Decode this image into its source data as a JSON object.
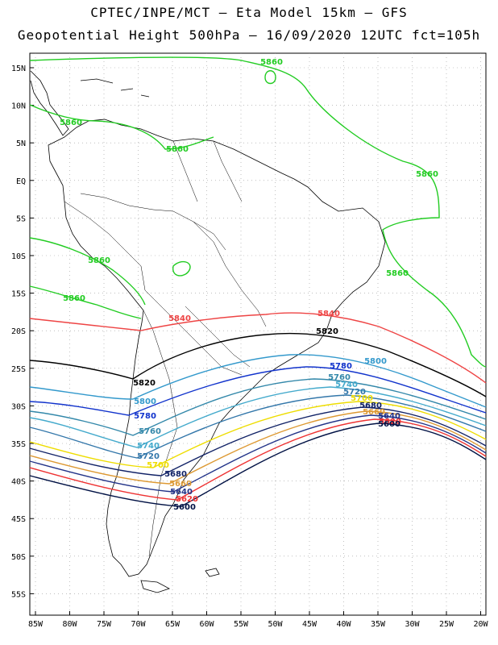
{
  "header": {
    "line1": "CPTEC/INPE/MCT –  Eta Model 15km – GFS",
    "line2": "Geopotential Height 500hPa – 16/09/2020 12UTC fct=105h"
  },
  "map": {
    "lat_labels": [
      "15N",
      "10N",
      "5N",
      "EQ",
      "5S",
      "10S",
      "15S",
      "20S",
      "25S",
      "30S",
      "35S",
      "40S",
      "45S",
      "50S",
      "55S"
    ],
    "lon_labels": [
      "85W",
      "80W",
      "75W",
      "70W",
      "65W",
      "60W",
      "55W",
      "50W",
      "45W",
      "40W",
      "35W",
      "30W",
      "25W",
      "20W"
    ],
    "colors": {
      "c5860": "#22cc22",
      "c5840": "#ee4444",
      "c5820": "#000000",
      "c5800": "#3399cc",
      "c5780": "#1133cc",
      "c5760": "#3388aa",
      "c5740": "#44aacc",
      "c5720": "#3377aa",
      "c5700": "#eedd00",
      "c5680": "#112266",
      "c5660": "#dd9933",
      "c5640": "#223388",
      "c5620": "#ee3333",
      "c5600": "#001144"
    },
    "contour_labels": {
      "a5860_1": "5860",
      "a5860_2": "5860",
      "a5860_3": "5860",
      "a5860_4": "5860",
      "a5860_5": "5860",
      "a5860_6": "5860",
      "a5860_7": "5860",
      "a5840_1": "5840",
      "a5840_2": "5840",
      "a5820_1": "5820",
      "a5820_2": "5820",
      "a5800_1": "5800",
      "a5800_2": "5800",
      "a5780_1": "5780",
      "a5780_2": "5780",
      "a5760_1": "5760",
      "a5760_2": "5760",
      "a5740_1": "5740",
      "a5740_2": "5740",
      "a5720_1": "5720",
      "a5720_2": "5720",
      "a5700_1": "5700",
      "a5700_2": "5700",
      "a5680_1": "5680",
      "a5680_2": "5680",
      "a5660_1": "5660",
      "a5660_2": "5660",
      "a5640_1": "5640",
      "a5640_2": "5640",
      "a5620_1": "5620",
      "a5620_2": "5620",
      "a5600_1": "5600",
      "a5600_2": "5600"
    }
  }
}
